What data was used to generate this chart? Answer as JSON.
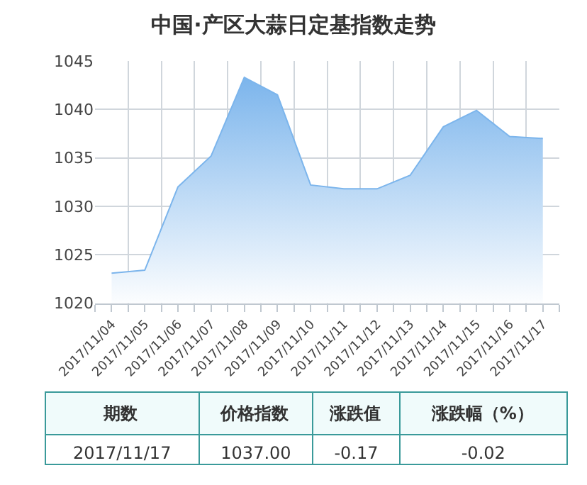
{
  "chart_data": {
    "type": "area",
    "title": "中国·产区大蒜日定基指数走势",
    "categories": [
      "2017/11/04",
      "2017/11/05",
      "2017/11/06",
      "2017/11/07",
      "2017/11/08",
      "2017/11/09",
      "2017/11/10",
      "2017/11/11",
      "2017/11/12",
      "2017/11/13",
      "2017/11/14",
      "2017/11/15",
      "2017/11/16",
      "2017/11/17"
    ],
    "series": [
      {
        "color": "#7cb5ec",
        "values": [
          1023.1,
          1023.4,
          1032.0,
          1035.2,
          1043.3,
          1041.5,
          1032.2,
          1031.8,
          1031.8,
          1033.2,
          1038.2,
          1039.9,
          1037.2,
          1037.0
        ]
      }
    ],
    "ylim": [
      1020,
      1045
    ],
    "yticks": [
      1020,
      1025,
      1030,
      1035,
      1040,
      1045
    ],
    "grid": true,
    "marker": "none",
    "annotations": [
      "期数",
      "价格指数",
      "涨跌值",
      "涨跌幅（%）",
      "2017/11/17",
      "1037.00",
      "-0.17",
      "-0.02"
    ]
  }
}
